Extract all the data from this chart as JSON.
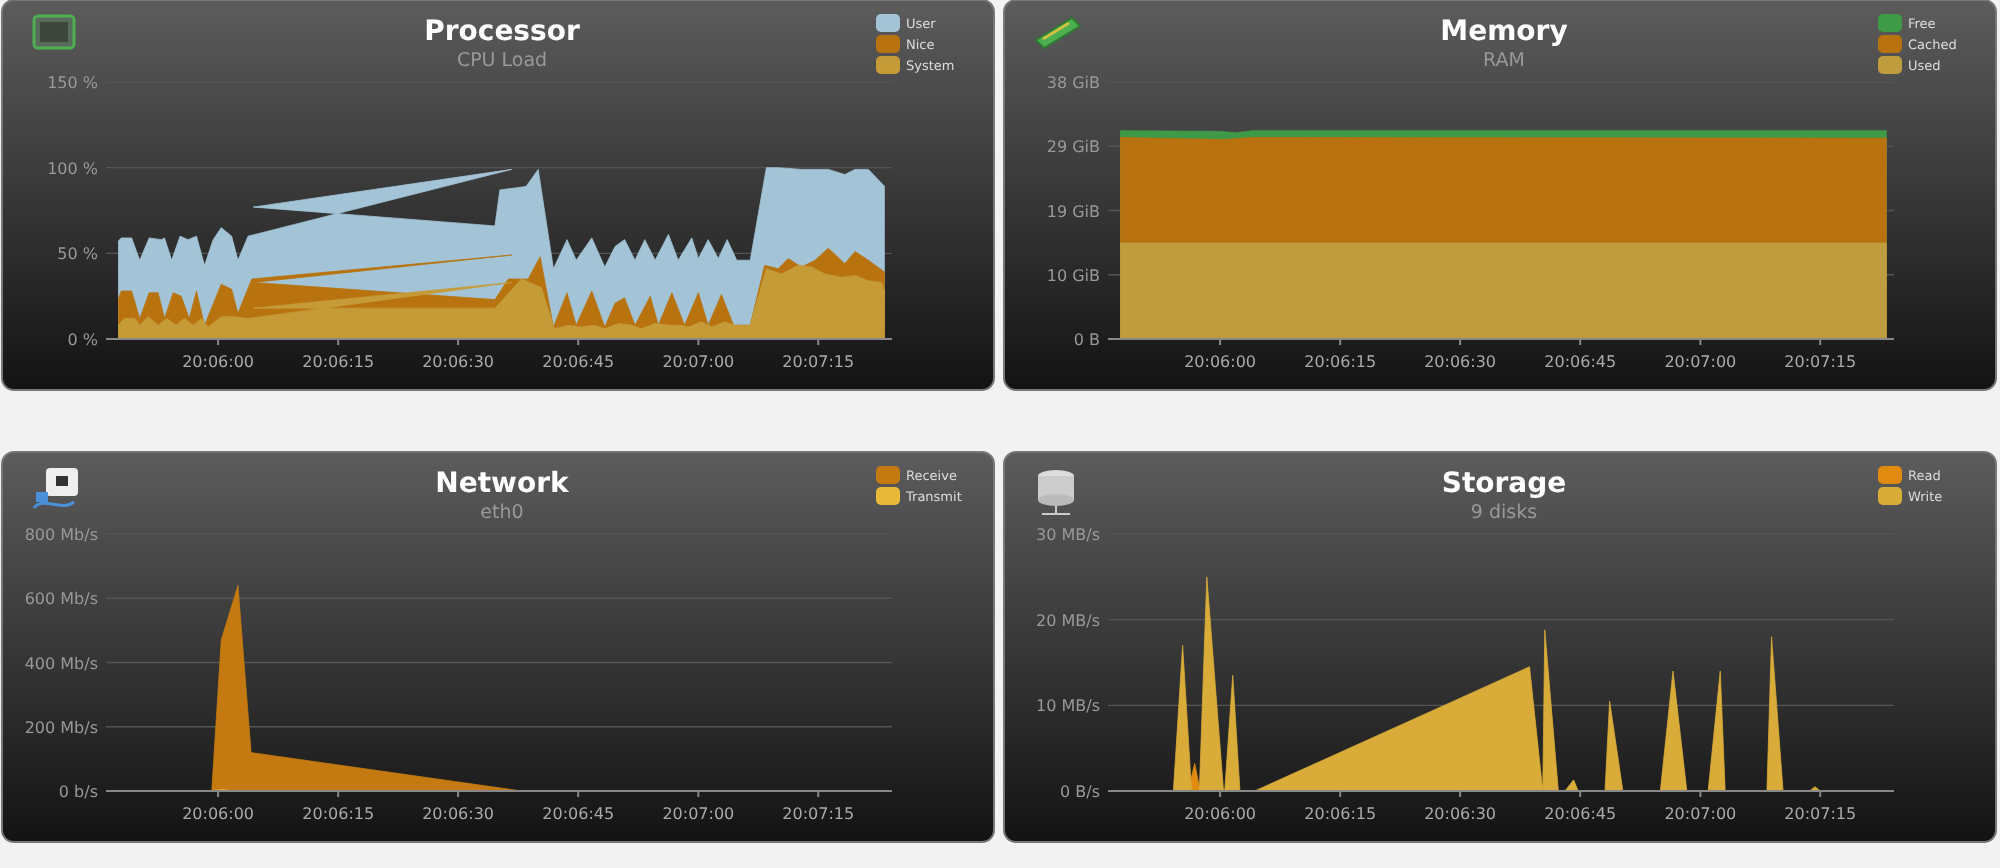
{
  "chart_data": [
    {
      "type": "area",
      "title": "Processor",
      "subtitle": "CPU Load",
      "grid": "y",
      "legend": "top right",
      "xlim": [
        20.09611,
        20.12339
      ],
      "xticks": [
        {
          "value": 20.1,
          "label": "20:06:00"
        },
        {
          "value": 20.10417,
          "label": "20:06:15"
        },
        {
          "value": 20.10833,
          "label": "20:06:30"
        },
        {
          "value": 20.1125,
          "label": "20:06:45"
        },
        {
          "value": 20.11667,
          "label": "20:07:00"
        },
        {
          "value": 20.12083,
          "label": "20:07:15"
        }
      ],
      "ylim": [
        0,
        150
      ],
      "yticks": [
        {
          "value": 0,
          "label": "0 %"
        },
        {
          "value": 50,
          "label": "50 %"
        },
        {
          "value": 100,
          "label": "100 %"
        },
        {
          "value": 150,
          "label": "150 %"
        }
      ],
      "series": [
        {
          "name": "User",
          "color": "#a3c4d6",
          "x": [
            20.09653,
            20.09664,
            20.097,
            20.09728,
            20.09761,
            20.09803,
            20.09814,
            20.09839,
            20.09868,
            20.09896,
            20.09925,
            20.09953,
            20.09983,
            20.10011,
            20.10047,
            20.10069,
            20.10104,
            20.11019,
            20.10122,
            20.10961,
            20.10978,
            20.11069,
            20.11111,
            20.11164,
            20.11211,
            20.11243,
            20.11297,
            20.11342,
            20.11378,
            20.11411,
            20.11447,
            20.11481,
            20.11517,
            20.11563,
            20.11597,
            20.11644,
            20.11667,
            20.11701,
            20.11736,
            20.11767,
            20.118,
            20.11847,
            20.11903,
            20.11944,
            20.12025,
            20.12118,
            20.12175,
            20.12211,
            20.12257,
            20.12314
          ],
          "values": [
            57,
            59,
            59,
            46,
            59,
            58,
            59,
            46,
            60,
            58,
            60,
            43,
            58,
            65,
            60,
            46,
            60,
            99,
            77,
            66,
            87,
            89,
            99,
            41,
            58,
            46,
            59,
            42,
            54,
            58,
            46,
            58,
            46,
            61,
            46,
            59,
            47,
            58,
            47,
            58,
            46,
            46,
            100,
            100,
            99,
            99,
            96,
            99,
            99,
            89
          ]
        },
        {
          "name": "Nice",
          "color": "#b8730f",
          "x": [
            20.09653,
            20.09664,
            20.097,
            20.09728,
            20.09761,
            20.09792,
            20.09814,
            20.09844,
            20.09872,
            20.099,
            20.09925,
            20.09953,
            20.10011,
            20.10047,
            20.10069,
            20.10117,
            20.11019,
            20.10122,
            20.10961,
            20.11007,
            20.11076,
            20.11118,
            20.11164,
            20.11211,
            20.11243,
            20.11297,
            20.11342,
            20.11378,
            20.11411,
            20.11447,
            20.115,
            20.11528,
            20.11575,
            20.11619,
            20.11667,
            20.11701,
            20.11747,
            20.11789,
            20.11847,
            20.11897,
            20.11944,
            20.11979,
            20.12025,
            20.12072,
            20.12118,
            20.12175,
            20.12211,
            20.12257,
            20.12314
          ],
          "values": [
            23,
            28,
            28,
            12,
            27,
            27,
            12,
            27,
            25,
            12,
            28,
            8,
            32,
            29,
            15,
            35,
            49,
            33,
            23,
            35,
            35,
            48,
            7,
            27,
            8,
            28,
            7,
            21,
            24,
            8,
            25,
            8,
            27,
            8,
            27,
            8,
            26,
            8,
            8,
            43,
            41,
            47,
            42,
            46,
            53,
            44,
            51,
            46,
            39
          ]
        },
        {
          "name": "System",
          "color": "#c59b38",
          "x": [
            20.09653,
            20.09675,
            20.09711,
            20.09728,
            20.09757,
            20.09792,
            20.09822,
            20.09854,
            20.09883,
            20.09914,
            20.09942,
            20.09965,
            20.10011,
            20.10058,
            20.10104,
            20.11019,
            20.10122,
            20.10961,
            20.11053,
            20.11122,
            20.11167,
            20.11215,
            20.11261,
            20.11306,
            20.11342,
            20.11389,
            20.11436,
            20.11469,
            20.11517,
            20.11563,
            20.11608,
            20.11632,
            20.11678,
            20.11714,
            20.11758,
            20.11794,
            20.11847,
            20.11903,
            20.11956,
            20.12014,
            20.12061,
            20.12106,
            20.12164,
            20.12211,
            20.12257,
            20.12303,
            20.12314
          ],
          "values": [
            8,
            12,
            12,
            8,
            13,
            8,
            12,
            8,
            12,
            8,
            12,
            7,
            13,
            13,
            12,
            33,
            18,
            18,
            35,
            30,
            6,
            8,
            7,
            8,
            6,
            9,
            8,
            6,
            9,
            8,
            8,
            7,
            10,
            7,
            10,
            8,
            8,
            41,
            38,
            43,
            42,
            38,
            36,
            37,
            34,
            33,
            27
          ]
        }
      ]
    },
    {
      "type": "area",
      "title": "Memory",
      "subtitle": "RAM",
      "grid": "y",
      "legend": "top right",
      "xlim": [
        20.09611,
        20.12339
      ],
      "xticks": [
        {
          "value": 20.1,
          "label": "20:06:00"
        },
        {
          "value": 20.10417,
          "label": "20:06:15"
        },
        {
          "value": 20.10833,
          "label": "20:06:30"
        },
        {
          "value": 20.1125,
          "label": "20:06:45"
        },
        {
          "value": 20.11667,
          "label": "20:07:00"
        },
        {
          "value": 20.12083,
          "label": "20:07:15"
        }
      ],
      "ylim": [
        0,
        38
      ],
      "yticks": [
        {
          "value": 0,
          "label": "0 B"
        },
        {
          "value": 9.5,
          "label": "10 GiB"
        },
        {
          "value": 19,
          "label": "19 GiB"
        },
        {
          "value": 28.5,
          "label": "29 GiB"
        },
        {
          "value": 38,
          "label": "38 GiB"
        }
      ],
      "series": [
        {
          "name": "Free",
          "color": "#3f9a47",
          "x": [
            20.09653,
            20.1,
            20.10056,
            20.10111,
            20.12314
          ],
          "values": [
            30.8,
            30.7,
            30.5,
            30.8,
            30.8
          ]
        },
        {
          "name": "Cached",
          "color": "#b8720f",
          "x": [
            20.09653,
            20.10014,
            20.10111,
            20.12314
          ],
          "values": [
            29.8,
            29.5,
            29.8,
            29.7
          ]
        },
        {
          "name": "Used",
          "color": "#bf9c3e",
          "x": [
            20.09653,
            20.12314
          ],
          "values": [
            14.2,
            14.2
          ]
        }
      ]
    },
    {
      "type": "area",
      "title": "Network",
      "subtitle": "eth0",
      "grid": "y",
      "legend": "top right",
      "xlim": [
        20.09611,
        20.12339
      ],
      "xticks": [
        {
          "value": 20.1,
          "label": "20:06:00"
        },
        {
          "value": 20.10417,
          "label": "20:06:15"
        },
        {
          "value": 20.10833,
          "label": "20:06:30"
        },
        {
          "value": 20.1125,
          "label": "20:06:45"
        },
        {
          "value": 20.11667,
          "label": "20:07:00"
        },
        {
          "value": 20.12083,
          "label": "20:07:15"
        }
      ],
      "ylim": [
        0,
        800
      ],
      "yticks": [
        {
          "value": 0,
          "label": "0 b/s"
        },
        {
          "value": 200,
          "label": "200 Mb/s"
        },
        {
          "value": 400,
          "label": "400 Mb/s"
        },
        {
          "value": 600,
          "label": "600 Mb/s"
        },
        {
          "value": 800,
          "label": "800 Mb/s"
        }
      ],
      "series": [
        {
          "name": "Receive",
          "color": "#c47a10",
          "x": [
            20.09653,
            20.09978,
            20.10011,
            20.10069,
            20.10125,
            20.10111,
            20.11053,
            20.12314
          ],
          "values": [
            0,
            0,
            470,
            640,
            0,
            120,
            0,
            0
          ]
        },
        {
          "name": "Transmit",
          "color": "#e8b93a",
          "x": [
            20.09653,
            20.09972,
            20.10014,
            20.10056,
            20.12314
          ],
          "values": [
            0,
            0,
            5,
            0,
            0
          ]
        }
      ]
    },
    {
      "type": "area",
      "title": "Storage",
      "subtitle": "9 disks",
      "grid": "y",
      "legend": "top right",
      "xlim": [
        20.09611,
        20.12339
      ],
      "xticks": [
        {
          "value": 20.1,
          "label": "20:06:00"
        },
        {
          "value": 20.10417,
          "label": "20:06:15"
        },
        {
          "value": 20.10833,
          "label": "20:06:30"
        },
        {
          "value": 20.1125,
          "label": "20:06:45"
        },
        {
          "value": 20.11667,
          "label": "20:07:00"
        },
        {
          "value": 20.12083,
          "label": "20:07:15"
        }
      ],
      "ylim": [
        0,
        30
      ],
      "yticks": [
        {
          "value": 0,
          "label": "0 B/s"
        },
        {
          "value": 10,
          "label": "10 MB/s"
        },
        {
          "value": 20,
          "label": "20 MB/s"
        },
        {
          "value": 30,
          "label": "30 MB/s"
        }
      ],
      "series": [
        {
          "name": "Read",
          "color": "#e08a10",
          "x": [
            20.09646,
            20.09889,
            20.09912,
            20.09931,
            20.12308
          ],
          "values": [
            0,
            0,
            3.2,
            0,
            0
          ]
        },
        {
          "name": "Write",
          "color": "#d9ac3a",
          "x": [
            20.09646,
            20.09838,
            20.0987,
            20.09901,
            20.09928,
            20.09954,
            20.10012,
            20.10016,
            20.10044,
            20.10069,
            20.1012,
            20.11074,
            20.1112,
            20.11127,
            20.11174,
            20.11197,
            20.11227,
            20.11243,
            20.11336,
            20.11352,
            20.11398,
            20.11528,
            20.11572,
            20.1162,
            20.11694,
            20.11736,
            20.11753,
            20.11898,
            20.11914,
            20.11954,
            20.12046,
            20.12065,
            20.12083,
            20.12308
          ],
          "values": [
            0,
            0,
            17,
            0,
            0,
            25,
            0,
            0,
            13.5,
            0,
            0,
            14.5,
            0,
            18.8,
            0,
            0,
            1.3,
            0,
            0,
            10.5,
            0,
            0,
            14,
            0,
            0,
            14,
            0,
            0,
            18,
            0,
            0,
            0.5,
            0,
            0
          ]
        }
      ]
    }
  ]
}
